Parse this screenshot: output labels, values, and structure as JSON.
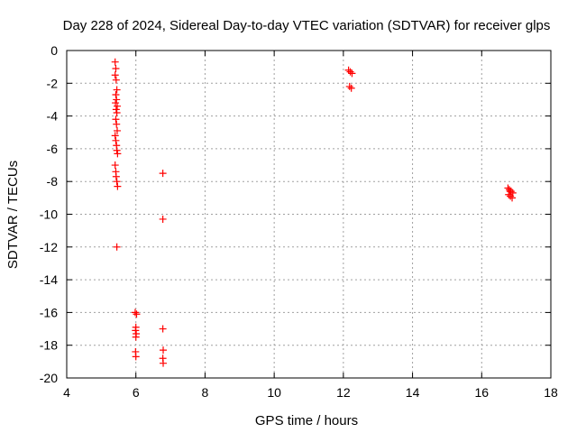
{
  "chart_data": {
    "type": "scatter",
    "title": "Day 228 of 2024, Sidereal Day-to-day VTEC variation (SDTVAR) for receiver glps",
    "xlabel": "GPS time / hours",
    "ylabel": "SDTVAR / TECUs",
    "xlim": [
      4,
      18
    ],
    "ylim": [
      -20,
      0
    ],
    "xticks": [
      4,
      6,
      8,
      10,
      12,
      14,
      16,
      18
    ],
    "yticks": [
      -20,
      -18,
      -16,
      -14,
      -12,
      -10,
      -8,
      -6,
      -4,
      -2,
      0
    ],
    "grid": true,
    "marker": "plus",
    "color": "#ff0000",
    "series": [
      {
        "name": "glps",
        "points": [
          [
            5.4,
            -0.7
          ],
          [
            5.42,
            -1.1
          ],
          [
            5.4,
            -1.5
          ],
          [
            5.43,
            -1.8
          ],
          [
            5.45,
            -2.4
          ],
          [
            5.42,
            -2.7
          ],
          [
            5.44,
            -3.0
          ],
          [
            5.41,
            -3.2
          ],
          [
            5.46,
            -3.4
          ],
          [
            5.43,
            -3.6
          ],
          [
            5.45,
            -3.8
          ],
          [
            5.42,
            -4.2
          ],
          [
            5.44,
            -4.5
          ],
          [
            5.46,
            -4.9
          ],
          [
            5.4,
            -5.2
          ],
          [
            5.42,
            -5.5
          ],
          [
            5.44,
            -5.8
          ],
          [
            5.45,
            -6.1
          ],
          [
            5.47,
            -6.3
          ],
          [
            5.4,
            -7.0
          ],
          [
            5.42,
            -7.4
          ],
          [
            5.43,
            -7.7
          ],
          [
            5.45,
            -8.0
          ],
          [
            5.47,
            -8.3
          ],
          [
            5.45,
            -12.0
          ],
          [
            5.98,
            -16.0
          ],
          [
            6.02,
            -16.1
          ],
          [
            6.0,
            -16.9
          ],
          [
            5.99,
            -17.1
          ],
          [
            6.01,
            -17.3
          ],
          [
            6.0,
            -17.5
          ],
          [
            5.99,
            -18.4
          ],
          [
            6.0,
            -18.7
          ],
          [
            6.78,
            -7.5
          ],
          [
            6.78,
            -10.3
          ],
          [
            6.78,
            -17.0
          ],
          [
            6.79,
            -18.3
          ],
          [
            6.78,
            -18.8
          ],
          [
            6.79,
            -19.1
          ],
          [
            12.15,
            -1.2
          ],
          [
            12.2,
            -1.3
          ],
          [
            12.25,
            -1.4
          ],
          [
            12.18,
            -2.2
          ],
          [
            12.23,
            -2.3
          ],
          [
            16.76,
            -8.4
          ],
          [
            16.8,
            -8.5
          ],
          [
            16.85,
            -8.6
          ],
          [
            16.9,
            -8.7
          ],
          [
            16.78,
            -8.8
          ],
          [
            16.83,
            -8.9
          ],
          [
            16.88,
            -9.0
          ],
          [
            16.82,
            -8.6
          ]
        ]
      }
    ]
  }
}
